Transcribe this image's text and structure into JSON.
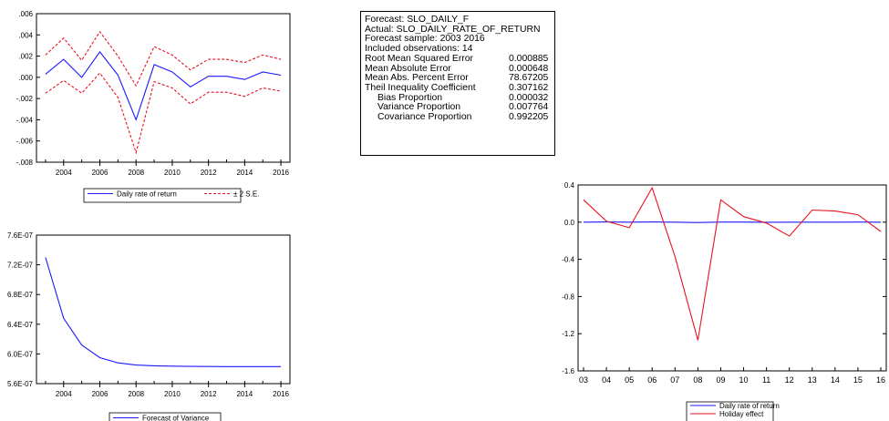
{
  "colors": {
    "blue": "#1a1aff",
    "red": "#e8111f",
    "axis": "#000000"
  },
  "forecast_stats": {
    "forecast": "Forecast: SLO_DAILY_F",
    "actual": "Actual: SLO_DAILY_RATE_OF_RETURN",
    "sample": "Forecast sample: 2003 2016",
    "included": "Included observations: 14",
    "rows": [
      {
        "label": "Root Mean Squared Error",
        "value": "0.000885"
      },
      {
        "label": "Mean Absolute Error",
        "value": "0.000648"
      },
      {
        "label": "Mean Abs. Percent Error",
        "value": "78.67205"
      },
      {
        "label": "Theil Inequality Coefficient",
        "value": "0.307162"
      },
      {
        "label": "Bias Proportion",
        "value": "0.000032"
      },
      {
        "label": "Variance Proportion",
        "value": "0.007764"
      },
      {
        "label": "Covariance Proportion",
        "value": "0.992205"
      }
    ]
  },
  "chart_data": [
    {
      "id": "forecast",
      "type": "line",
      "title": "",
      "xlabel": "",
      "ylabel": "",
      "x": [
        2003,
        2004,
        2005,
        2006,
        2007,
        2008,
        2009,
        2010,
        2011,
        2012,
        2013,
        2014,
        2015,
        2016
      ],
      "xlim": [
        2002.5,
        2016.5
      ],
      "xticks": [
        2004,
        2006,
        2008,
        2010,
        2012,
        2014,
        2016
      ],
      "xtick_labels": [
        "2004",
        "2006",
        "2008",
        "2010",
        "2012",
        "2014",
        "2016"
      ],
      "ylim": [
        -0.008,
        0.006
      ],
      "yticks": [
        -0.008,
        -0.006,
        -0.004,
        -0.002,
        0.0,
        0.002,
        0.004,
        0.006
      ],
      "ytick_labels": [
        "-.008",
        "-.006",
        "-.004",
        "-.002",
        ".000",
        ".002",
        ".004",
        ".006"
      ],
      "grid": false,
      "legend_position": "bottom",
      "series": [
        {
          "name": "Daily rate of return",
          "color": "#1a1aff",
          "style": "solid",
          "values": [
            0.0003,
            0.0017,
            0.0,
            0.0024,
            0.0002,
            -0.004,
            0.0012,
            0.0005,
            -0.0009,
            0.0001,
            0.0001,
            -0.0002,
            0.0005,
            0.0002
          ]
        },
        {
          "name": "± 2 S.E.",
          "color": "#e8111f",
          "style": "dashed",
          "values": [
            0.0021,
            0.0037,
            0.0016,
            0.0043,
            0.002,
            -0.0008,
            0.0029,
            0.0021,
            0.0007,
            0.0017,
            0.0017,
            0.0014,
            0.0021,
            0.0017
          ]
        },
        {
          "name": "",
          "color": "#e8111f",
          "style": "dashed",
          "values": [
            -0.0015,
            -0.0003,
            -0.0015,
            0.0004,
            -0.0019,
            -0.0071,
            -0.0004,
            -0.001,
            -0.0025,
            -0.0014,
            -0.0014,
            -0.0018,
            -0.001,
            -0.0013
          ]
        }
      ]
    },
    {
      "id": "variance",
      "type": "line",
      "title": "",
      "xlabel": "",
      "ylabel": "",
      "x": [
        2003,
        2004,
        2005,
        2006,
        2007,
        2008,
        2009,
        2010,
        2011,
        2012,
        2013,
        2014,
        2015,
        2016
      ],
      "xlim": [
        2002.5,
        2016.5
      ],
      "xticks": [
        2004,
        2006,
        2008,
        2010,
        2012,
        2014,
        2016
      ],
      "xtick_labels": [
        "2004",
        "2006",
        "2008",
        "2010",
        "2012",
        "2014",
        "2016"
      ],
      "ylim": [
        5.6e-07,
        7.6e-07
      ],
      "yticks": [
        5.6e-07,
        6e-07,
        6.4e-07,
        6.8e-07,
        7.2e-07,
        7.6e-07
      ],
      "ytick_labels": [
        "5.6E-07",
        "6.0E-07",
        "6.4E-07",
        "6.8E-07",
        "7.2E-07",
        "7.6E-07"
      ],
      "grid": false,
      "legend_position": "bottom",
      "series": [
        {
          "name": "Forecast of Variance",
          "color": "#1a1aff",
          "style": "solid",
          "values": [
            7.3e-07,
            6.48e-07,
            6.12e-07,
            5.95e-07,
            5.88e-07,
            5.85e-07,
            5.84e-07,
            5.835e-07,
            5.832e-07,
            5.831e-07,
            5.83e-07,
            5.83e-07,
            5.83e-07,
            5.83e-07
          ]
        }
      ]
    },
    {
      "id": "holiday",
      "type": "line",
      "title": "",
      "xlabel": "",
      "ylabel": "",
      "categories": [
        "03",
        "04",
        "05",
        "06",
        "07",
        "08",
        "09",
        "10",
        "11",
        "12",
        "13",
        "14",
        "15",
        "16"
      ],
      "ylim": [
        -1.6,
        0.4
      ],
      "yticks": [
        -1.6,
        -1.2,
        -0.8,
        -0.4,
        0.0,
        0.4
      ],
      "ytick_labels": [
        "-1.6",
        "-1.2",
        "-0.8",
        "-0.4",
        "0.0",
        "0.4"
      ],
      "grid": false,
      "legend_position": "bottom",
      "series": [
        {
          "name": "Daily rate of return",
          "color": "#1a1aff",
          "style": "solid",
          "values": [
            0.0003,
            0.0017,
            0.0,
            0.0024,
            0.0002,
            -0.004,
            0.0012,
            0.0005,
            -0.0009,
            0.0001,
            0.0001,
            -0.0002,
            0.0005,
            0.0002
          ]
        },
        {
          "name": "Holiday effect",
          "color": "#e8111f",
          "style": "solid",
          "values": [
            0.24,
            0.01,
            -0.06,
            0.37,
            -0.37,
            -1.27,
            0.24,
            0.06,
            -0.01,
            -0.15,
            0.13,
            0.12,
            0.08,
            -0.1
          ]
        }
      ]
    }
  ]
}
